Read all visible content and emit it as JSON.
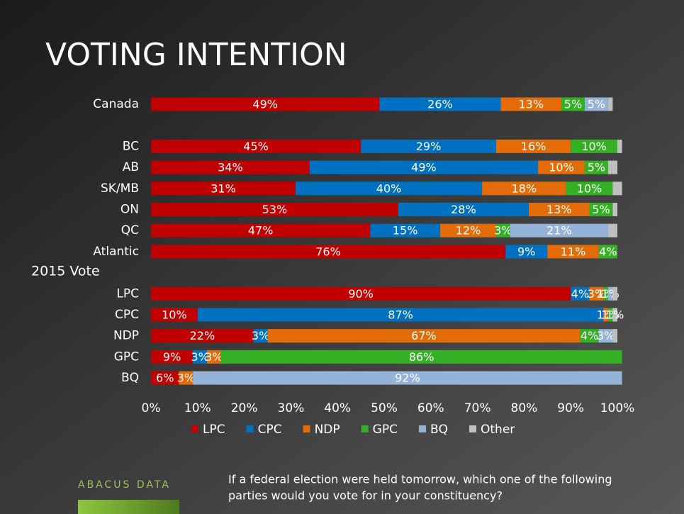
{
  "chart_data": {
    "type": "stacked_bar_horizontal",
    "title": "VOTING INTENTION",
    "group_label": "2015 Vote",
    "categories": [
      "Canada",
      null,
      "BC",
      "AB",
      "SK/MB",
      "ON",
      "QC",
      "Atlantic",
      null,
      "LPC",
      "CPC",
      "NDP",
      "GPC",
      "BQ"
    ],
    "series": [
      {
        "name": "LPC",
        "color": "#c00000",
        "values": [
          49,
          null,
          45,
          34,
          31,
          53,
          47,
          76,
          null,
          90,
          10,
          22,
          9,
          6
        ],
        "value_labels": [
          "49%",
          null,
          "45%",
          "34%",
          "31%",
          "53%",
          "47%",
          "76%",
          null,
          "90%",
          "10%",
          "22%",
          "9%",
          "6%"
        ]
      },
      {
        "name": "CPC",
        "color": "#0070c0",
        "values": [
          26,
          null,
          29,
          49,
          40,
          28,
          15,
          9,
          null,
          4,
          87,
          3,
          3,
          null
        ],
        "value_labels": [
          "26%",
          null,
          "29%",
          "49%",
          "40%",
          "28%",
          "15%",
          "9%",
          null,
          "4%",
          "87%",
          "3%",
          "3%",
          null
        ]
      },
      {
        "name": "NDP",
        "color": "#e36c09",
        "values": [
          13,
          null,
          16,
          10,
          18,
          13,
          12,
          11,
          null,
          3,
          1,
          67,
          3,
          3
        ],
        "value_labels": [
          "13%",
          null,
          "16%",
          "10%",
          "18%",
          "13%",
          "12%",
          "11%",
          null,
          "3%",
          "1%",
          "67%",
          "3%",
          "3%"
        ]
      },
      {
        "name": "GPC",
        "color": "#33b024",
        "values": [
          5,
          null,
          10,
          5,
          10,
          5,
          3,
          4,
          null,
          1,
          1,
          4,
          86,
          null
        ],
        "value_labels": [
          "5%",
          null,
          "10%",
          "5%",
          "10%",
          "5%",
          "3%",
          "4%",
          null,
          "1%",
          "1%",
          "4%",
          "86%",
          null
        ]
      },
      {
        "name": "BQ",
        "color": "#95b3d7",
        "values": [
          5,
          null,
          null,
          null,
          null,
          null,
          21,
          null,
          null,
          1,
          null,
          3,
          null,
          92
        ],
        "value_labels": [
          "5%",
          null,
          null,
          null,
          null,
          null,
          "21%",
          null,
          null,
          "1%",
          null,
          "3%",
          null,
          "92%"
        ]
      },
      {
        "name": "Other",
        "color": "#bfbfbf",
        "values": [
          1,
          null,
          1,
          2,
          2,
          1,
          2,
          null,
          null,
          1,
          1,
          1,
          null,
          null
        ],
        "value_labels": [
          null,
          null,
          null,
          null,
          null,
          null,
          null,
          null,
          null,
          null,
          "1%",
          null,
          null,
          null
        ]
      }
    ],
    "xlim": [
      0,
      100
    ],
    "xticks": [
      {
        "value": 0,
        "label": "0%"
      },
      {
        "value": 10,
        "label": "10%"
      },
      {
        "value": 20,
        "label": "20%"
      },
      {
        "value": 30,
        "label": "30%"
      },
      {
        "value": 40,
        "label": "40%"
      },
      {
        "value": 50,
        "label": "50%"
      },
      {
        "value": 60,
        "label": "60%"
      },
      {
        "value": 70,
        "label": "70%"
      },
      {
        "value": 80,
        "label": "80%"
      },
      {
        "value": 90,
        "label": "90%"
      },
      {
        "value": 100,
        "label": "100%"
      }
    ],
    "legend": "bottom",
    "footnote_lines": [
      "If a federal election were held tomorrow, which one of the following",
      "parties would you vote for in your constituency?"
    ],
    "logo": "ABACUS DATA"
  }
}
